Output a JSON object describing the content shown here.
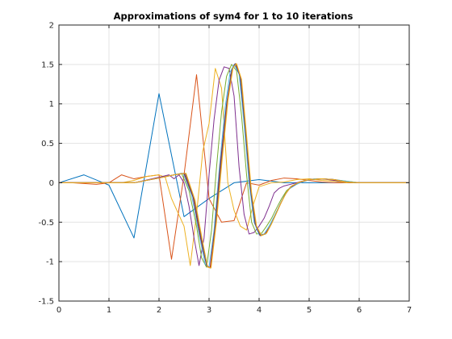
{
  "chart_data": {
    "type": "line",
    "title": "Approximations of sym4 for 1 to 10 iterations",
    "xlabel": "",
    "ylabel": "",
    "xlim": [
      0,
      7
    ],
    "ylim": [
      -1.5,
      2
    ],
    "xticks": [
      0,
      1,
      2,
      3,
      4,
      5,
      6,
      7
    ],
    "xtick_labels": [
      "0",
      "1",
      "2",
      "3",
      "4",
      "5",
      "6",
      "7"
    ],
    "yticks": [
      -1.5,
      -1,
      -0.5,
      0,
      0.5,
      1,
      1.5,
      2
    ],
    "ytick_labels": [
      "-1.5",
      "-1",
      "-0.5",
      "0",
      "0.5",
      "1",
      "1.5",
      "2"
    ],
    "grid": true,
    "series": [
      {
        "color": "#0072BD",
        "points": [
          [
            0,
            0
          ],
          [
            0.5,
            0.1
          ],
          [
            1,
            -0.03
          ],
          [
            1.5,
            -0.7
          ],
          [
            2,
            1.13
          ],
          [
            2.5,
            -0.43
          ],
          [
            3,
            -0.2
          ],
          [
            3.5,
            0
          ],
          [
            4,
            0.04
          ],
          [
            4.5,
            0
          ],
          [
            5,
            0
          ],
          [
            5.5,
            0
          ],
          [
            6,
            0
          ],
          [
            6.5,
            0
          ],
          [
            7,
            0
          ]
        ]
      },
      {
        "color": "#D95319",
        "points": [
          [
            0,
            0
          ],
          [
            0.25,
            0
          ],
          [
            0.5,
            -0.01
          ],
          [
            0.75,
            -0.02
          ],
          [
            1,
            0
          ],
          [
            1.25,
            0.1
          ],
          [
            1.5,
            0.05
          ],
          [
            1.75,
            0.08
          ],
          [
            2,
            0.1
          ],
          [
            2.25,
            -0.97
          ],
          [
            2.5,
            0.1
          ],
          [
            2.75,
            1.37
          ],
          [
            3,
            -0.2
          ],
          [
            3.25,
            -0.5
          ],
          [
            3.5,
            -0.48
          ],
          [
            3.75,
            0
          ],
          [
            4,
            -0.03
          ],
          [
            4.25,
            0.03
          ],
          [
            4.5,
            0.06
          ],
          [
            4.75,
            0.05
          ],
          [
            5,
            0.03
          ],
          [
            5.25,
            0.01
          ],
          [
            5.5,
            0
          ],
          [
            6,
            0
          ],
          [
            6.5,
            0
          ],
          [
            7,
            0
          ]
        ]
      },
      {
        "color": "#EDB120",
        "points": [
          [
            0,
            0
          ],
          [
            0.5,
            0
          ],
          [
            1,
            0
          ],
          [
            1.25,
            0
          ],
          [
            1.5,
            0.03
          ],
          [
            1.75,
            0.08
          ],
          [
            2,
            0.1
          ],
          [
            2.125,
            0.07
          ],
          [
            2.25,
            -0.2
          ],
          [
            2.5,
            -0.55
          ],
          [
            2.625,
            -1.05
          ],
          [
            2.75,
            -0.4
          ],
          [
            2.875,
            0.4
          ],
          [
            3,
            0.75
          ],
          [
            3.125,
            1.45
          ],
          [
            3.25,
            1.2
          ],
          [
            3.375,
            0
          ],
          [
            3.5,
            -0.35
          ],
          [
            3.625,
            -0.55
          ],
          [
            3.75,
            -0.6
          ],
          [
            3.875,
            -0.3
          ],
          [
            4,
            -0.05
          ],
          [
            4.25,
            0
          ],
          [
            4.5,
            0.01
          ],
          [
            4.75,
            0.04
          ],
          [
            5,
            0.05
          ],
          [
            5.25,
            0.03
          ],
          [
            5.5,
            0.02
          ],
          [
            5.75,
            0
          ],
          [
            6,
            0
          ],
          [
            7,
            0
          ]
        ]
      },
      {
        "color": "#7E2F8E",
        "points": [
          [
            0,
            0
          ],
          [
            0.5,
            0
          ],
          [
            1,
            0
          ],
          [
            1.5,
            0
          ],
          [
            2,
            0.07
          ],
          [
            2.2,
            0.1
          ],
          [
            2.3,
            0.05
          ],
          [
            2.4,
            0.1
          ],
          [
            2.5,
            0
          ],
          [
            2.6,
            -0.3
          ],
          [
            2.7,
            -0.7
          ],
          [
            2.8,
            -1.05
          ],
          [
            2.9,
            -0.7
          ],
          [
            3,
            0.1
          ],
          [
            3.1,
            0.8
          ],
          [
            3.2,
            1.3
          ],
          [
            3.3,
            1.47
          ],
          [
            3.4,
            1.45
          ],
          [
            3.5,
            1.1
          ],
          [
            3.6,
            0.2
          ],
          [
            3.7,
            -0.4
          ],
          [
            3.8,
            -0.65
          ],
          [
            3.9,
            -0.63
          ],
          [
            4,
            -0.55
          ],
          [
            4.1,
            -0.45
          ],
          [
            4.2,
            -0.3
          ],
          [
            4.3,
            -0.13
          ],
          [
            4.4,
            -0.07
          ],
          [
            4.5,
            -0.04
          ],
          [
            4.75,
            0
          ],
          [
            5,
            0.04
          ],
          [
            5.25,
            0.05
          ],
          [
            5.5,
            0.03
          ],
          [
            5.75,
            0.01
          ],
          [
            6,
            0
          ],
          [
            7,
            0
          ]
        ]
      },
      {
        "color": "#77AC30",
        "points": [
          [
            0,
            0
          ],
          [
            1,
            0
          ],
          [
            1.5,
            0
          ],
          [
            2,
            0.06
          ],
          [
            2.3,
            0.1
          ],
          [
            2.45,
            0.12
          ],
          [
            2.6,
            -0.1
          ],
          [
            2.75,
            -0.55
          ],
          [
            2.85,
            -0.95
          ],
          [
            2.95,
            -1.07
          ],
          [
            3.05,
            -0.6
          ],
          [
            3.15,
            0.2
          ],
          [
            3.25,
            0.9
          ],
          [
            3.35,
            1.35
          ],
          [
            3.45,
            1.5
          ],
          [
            3.55,
            1.42
          ],
          [
            3.65,
            0.85
          ],
          [
            3.75,
            0.1
          ],
          [
            3.85,
            -0.5
          ],
          [
            3.95,
            -0.65
          ],
          [
            4.05,
            -0.64
          ],
          [
            4.15,
            -0.55
          ],
          [
            4.25,
            -0.45
          ],
          [
            4.35,
            -0.32
          ],
          [
            4.45,
            -0.2
          ],
          [
            4.55,
            -0.1
          ],
          [
            4.65,
            -0.05
          ],
          [
            4.8,
            0
          ],
          [
            5,
            0.04
          ],
          [
            5.25,
            0.05
          ],
          [
            5.5,
            0.04
          ],
          [
            5.75,
            0.02
          ],
          [
            6,
            0
          ],
          [
            7,
            0
          ]
        ]
      },
      {
        "color": "#4DBEEE",
        "points": [
          [
            0,
            0
          ],
          [
            1,
            0
          ],
          [
            1.5,
            0
          ],
          [
            2,
            0.06
          ],
          [
            2.3,
            0.1
          ],
          [
            2.48,
            0.12
          ],
          [
            2.65,
            -0.15
          ],
          [
            2.8,
            -0.65
          ],
          [
            2.92,
            -1.03
          ],
          [
            3,
            -1.07
          ],
          [
            3.1,
            -0.6
          ],
          [
            3.2,
            0.15
          ],
          [
            3.32,
            0.95
          ],
          [
            3.42,
            1.4
          ],
          [
            3.5,
            1.5
          ],
          [
            3.6,
            1.38
          ],
          [
            3.7,
            0.75
          ],
          [
            3.8,
            0
          ],
          [
            3.9,
            -0.5
          ],
          [
            4,
            -0.66
          ],
          [
            4.1,
            -0.65
          ],
          [
            4.2,
            -0.55
          ],
          [
            4.3,
            -0.43
          ],
          [
            4.4,
            -0.3
          ],
          [
            4.5,
            -0.17
          ],
          [
            4.6,
            -0.08
          ],
          [
            4.75,
            -0.02
          ],
          [
            4.9,
            0.02
          ],
          [
            5.1,
            0.05
          ],
          [
            5.3,
            0.05
          ],
          [
            5.5,
            0.04
          ],
          [
            5.75,
            0.02
          ],
          [
            6,
            0
          ],
          [
            7,
            0
          ]
        ]
      },
      {
        "color": "#A2142F",
        "points": [
          [
            0,
            0
          ],
          [
            1,
            0
          ],
          [
            1.5,
            0
          ],
          [
            2,
            0.06
          ],
          [
            2.3,
            0.1
          ],
          [
            2.5,
            0.12
          ],
          [
            2.68,
            -0.18
          ],
          [
            2.83,
            -0.7
          ],
          [
            2.95,
            -1.05
          ],
          [
            3.02,
            -1.08
          ],
          [
            3.12,
            -0.55
          ],
          [
            3.22,
            0.2
          ],
          [
            3.35,
            1.0
          ],
          [
            3.45,
            1.42
          ],
          [
            3.52,
            1.51
          ],
          [
            3.62,
            1.35
          ],
          [
            3.72,
            0.7
          ],
          [
            3.82,
            -0.05
          ],
          [
            3.92,
            -0.52
          ],
          [
            4.02,
            -0.67
          ],
          [
            4.12,
            -0.65
          ],
          [
            4.22,
            -0.55
          ],
          [
            4.32,
            -0.42
          ],
          [
            4.42,
            -0.28
          ],
          [
            4.52,
            -0.15
          ],
          [
            4.62,
            -0.06
          ],
          [
            4.78,
            0
          ],
          [
            5,
            0.04
          ],
          [
            5.25,
            0.05
          ],
          [
            5.5,
            0.04
          ],
          [
            5.75,
            0.01
          ],
          [
            6,
            0
          ],
          [
            7,
            0
          ]
        ]
      },
      {
        "color": "#0072BD",
        "points": [
          [
            0,
            0
          ],
          [
            1,
            0
          ],
          [
            1.5,
            0
          ],
          [
            2,
            0.06
          ],
          [
            2.3,
            0.1
          ],
          [
            2.52,
            0.12
          ],
          [
            2.7,
            -0.2
          ],
          [
            2.85,
            -0.72
          ],
          [
            2.96,
            -1.06
          ],
          [
            3.03,
            -1.08
          ],
          [
            3.13,
            -0.52
          ],
          [
            3.24,
            0.25
          ],
          [
            3.36,
            1.02
          ],
          [
            3.46,
            1.44
          ],
          [
            3.53,
            1.51
          ],
          [
            3.63,
            1.33
          ],
          [
            3.73,
            0.65
          ],
          [
            3.83,
            -0.08
          ],
          [
            3.93,
            -0.53
          ],
          [
            4.03,
            -0.67
          ],
          [
            4.13,
            -0.65
          ],
          [
            4.23,
            -0.54
          ],
          [
            4.33,
            -0.4
          ],
          [
            4.43,
            -0.26
          ],
          [
            4.53,
            -0.14
          ],
          [
            4.63,
            -0.05
          ],
          [
            4.8,
            0.01
          ],
          [
            5,
            0.04
          ],
          [
            5.25,
            0.05
          ],
          [
            5.5,
            0.04
          ],
          [
            5.75,
            0.01
          ],
          [
            6,
            0
          ],
          [
            7,
            0
          ]
        ]
      },
      {
        "color": "#D95319",
        "points": [
          [
            0,
            0
          ],
          [
            1,
            0
          ],
          [
            1.5,
            0
          ],
          [
            2,
            0.06
          ],
          [
            2.3,
            0.1
          ],
          [
            2.53,
            0.12
          ],
          [
            2.71,
            -0.21
          ],
          [
            2.86,
            -0.73
          ],
          [
            2.97,
            -1.06
          ],
          [
            3.03,
            -1.08
          ],
          [
            3.14,
            -0.5
          ],
          [
            3.25,
            0.27
          ],
          [
            3.37,
            1.04
          ],
          [
            3.47,
            1.45
          ],
          [
            3.54,
            1.51
          ],
          [
            3.64,
            1.32
          ],
          [
            3.74,
            0.62
          ],
          [
            3.84,
            -0.1
          ],
          [
            3.94,
            -0.54
          ],
          [
            4.04,
            -0.67
          ],
          [
            4.14,
            -0.64
          ],
          [
            4.24,
            -0.53
          ],
          [
            4.34,
            -0.39
          ],
          [
            4.44,
            -0.25
          ],
          [
            4.54,
            -0.13
          ],
          [
            4.64,
            -0.05
          ],
          [
            4.8,
            0.01
          ],
          [
            5,
            0.04
          ],
          [
            5.25,
            0.05
          ],
          [
            5.5,
            0.04
          ],
          [
            5.75,
            0.01
          ],
          [
            6,
            0
          ],
          [
            7,
            0
          ]
        ]
      },
      {
        "color": "#EDB120",
        "points": [
          [
            0,
            0
          ],
          [
            1,
            0
          ],
          [
            1.5,
            0
          ],
          [
            2,
            0.06
          ],
          [
            2.3,
            0.1
          ],
          [
            2.54,
            0.12
          ],
          [
            2.72,
            -0.22
          ],
          [
            2.87,
            -0.74
          ],
          [
            2.97,
            -1.07
          ],
          [
            3.04,
            -1.08
          ],
          [
            3.15,
            -0.49
          ],
          [
            3.26,
            0.28
          ],
          [
            3.38,
            1.05
          ],
          [
            3.48,
            1.46
          ],
          [
            3.55,
            1.51
          ],
          [
            3.65,
            1.31
          ],
          [
            3.75,
            0.6
          ],
          [
            3.85,
            -0.12
          ],
          [
            3.95,
            -0.55
          ],
          [
            4.05,
            -0.67
          ],
          [
            4.15,
            -0.64
          ],
          [
            4.25,
            -0.52
          ],
          [
            4.35,
            -0.38
          ],
          [
            4.45,
            -0.24
          ],
          [
            4.55,
            -0.12
          ],
          [
            4.65,
            -0.04
          ],
          [
            4.82,
            0.01
          ],
          [
            5,
            0.04
          ],
          [
            5.25,
            0.05
          ],
          [
            5.5,
            0.04
          ],
          [
            5.75,
            0.01
          ],
          [
            6,
            0
          ],
          [
            7,
            0
          ]
        ]
      }
    ]
  }
}
